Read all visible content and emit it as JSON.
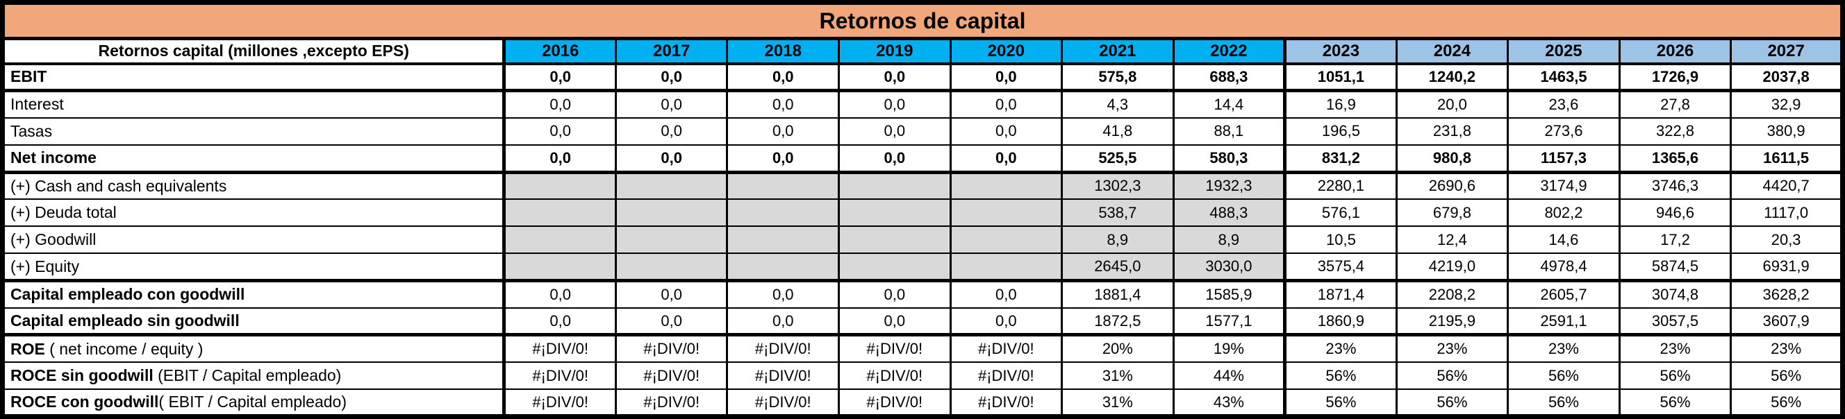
{
  "title": "Retornos de capital",
  "table": {
    "label_header": "Retornos capital (millones ,excepto EPS)",
    "years": [
      "2016",
      "2017",
      "2018",
      "2019",
      "2020",
      "2021",
      "2022",
      "2023",
      "2024",
      "2025",
      "2026",
      "2027"
    ],
    "forecast_start_index": 7,
    "rows": [
      {
        "label_bold": "EBIT",
        "label_rest": "",
        "values": [
          "0,0",
          "0,0",
          "0,0",
          "0,0",
          "0,0",
          "575,8",
          "688,3",
          "1051,1",
          "1240,2",
          "1463,5",
          "1726,9",
          "2037,8"
        ],
        "values_bold": true,
        "gray_cols": [],
        "thick_bottom": true
      },
      {
        "label_bold": "",
        "label_rest": "Interest",
        "values": [
          "0,0",
          "0,0",
          "0,0",
          "0,0",
          "0,0",
          "4,3",
          "14,4",
          "16,9",
          "20,0",
          "23,6",
          "27,8",
          "32,9"
        ],
        "values_bold": false,
        "gray_cols": [],
        "thick_bottom": false
      },
      {
        "label_bold": "",
        "label_rest": "Tasas",
        "values": [
          "0,0",
          "0,0",
          "0,0",
          "0,0",
          "0,0",
          "41,8",
          "88,1",
          "196,5",
          "231,8",
          "273,6",
          "322,8",
          "380,9"
        ],
        "values_bold": false,
        "gray_cols": [],
        "thick_bottom": false
      },
      {
        "label_bold": "Net income",
        "label_rest": "",
        "values": [
          "0,0",
          "0,0",
          "0,0",
          "0,0",
          "0,0",
          "525,5",
          "580,3",
          "831,2",
          "980,8",
          "1157,3",
          "1365,6",
          "1611,5"
        ],
        "values_bold": true,
        "gray_cols": [],
        "thick_bottom": true
      },
      {
        "label_bold": "",
        "label_rest": "(+) Cash and cash equivalents",
        "values": [
          "",
          "",
          "",
          "",
          "",
          "1302,3",
          "1932,3",
          "2280,1",
          "2690,6",
          "3174,9",
          "3746,3",
          "4420,7"
        ],
        "values_bold": false,
        "gray_cols": [
          0,
          1,
          2,
          3,
          4,
          5,
          6
        ],
        "thick_bottom": false
      },
      {
        "label_bold": "",
        "label_rest": "(+) Deuda total",
        "values": [
          "",
          "",
          "",
          "",
          "",
          "538,7",
          "488,3",
          "576,1",
          "679,8",
          "802,2",
          "946,6",
          "1117,0"
        ],
        "values_bold": false,
        "gray_cols": [
          0,
          1,
          2,
          3,
          4,
          5,
          6
        ],
        "thick_bottom": false
      },
      {
        "label_bold": "",
        "label_rest": "(+) Goodwill",
        "values": [
          "",
          "",
          "",
          "",
          "",
          "8,9",
          "8,9",
          "10,5",
          "12,4",
          "14,6",
          "17,2",
          "20,3"
        ],
        "values_bold": false,
        "gray_cols": [
          0,
          1,
          2,
          3,
          4,
          5,
          6
        ],
        "thick_bottom": false
      },
      {
        "label_bold": "",
        "label_rest": "(+) Equity",
        "values": [
          "",
          "",
          "",
          "",
          "",
          "2645,0",
          "3030,0",
          "3575,4",
          "4219,0",
          "4978,4",
          "5874,5",
          "6931,9"
        ],
        "values_bold": false,
        "gray_cols": [
          0,
          1,
          2,
          3,
          4,
          5,
          6
        ],
        "thick_bottom": true
      },
      {
        "label_bold": "Capital empleado con goodwill",
        "label_rest": "",
        "values": [
          "0,0",
          "0,0",
          "0,0",
          "0,0",
          "0,0",
          "1881,4",
          "1585,9",
          "1871,4",
          "2208,2",
          "2605,7",
          "3074,8",
          "3628,2"
        ],
        "values_bold": false,
        "gray_cols": [],
        "thick_bottom": false
      },
      {
        "label_bold": "Capital empleado sin goodwill",
        "label_rest": "",
        "values": [
          "0,0",
          "0,0",
          "0,0",
          "0,0",
          "0,0",
          "1872,5",
          "1577,1",
          "1860,9",
          "2195,9",
          "2591,1",
          "3057,5",
          "3607,9"
        ],
        "values_bold": false,
        "gray_cols": [],
        "thick_bottom": true
      },
      {
        "label_bold": "ROE",
        "label_rest": " ( net income / equity )",
        "values": [
          "#¡DIV/0!",
          "#¡DIV/0!",
          "#¡DIV/0!",
          "#¡DIV/0!",
          "#¡DIV/0!",
          "20%",
          "19%",
          "23%",
          "23%",
          "23%",
          "23%",
          "23%"
        ],
        "values_bold": false,
        "gray_cols": [],
        "thick_bottom": false
      },
      {
        "label_bold": "ROCE sin goodwill",
        "label_rest": " (EBIT / Capital empleado)",
        "values": [
          "#¡DIV/0!",
          "#¡DIV/0!",
          "#¡DIV/0!",
          "#¡DIV/0!",
          "#¡DIV/0!",
          "31%",
          "44%",
          "56%",
          "56%",
          "56%",
          "56%",
          "56%"
        ],
        "values_bold": false,
        "gray_cols": [],
        "thick_bottom": false
      },
      {
        "label_bold": "ROCE con goodwill",
        "label_rest": "( EBIT / Capital empleado)",
        "values": [
          "#¡DIV/0!",
          "#¡DIV/0!",
          "#¡DIV/0!",
          "#¡DIV/0!",
          "#¡DIV/0!",
          "31%",
          "43%",
          "56%",
          "56%",
          "56%",
          "56%",
          "56%"
        ],
        "values_bold": false,
        "gray_cols": [],
        "thick_bottom": true
      }
    ]
  },
  "colors": {
    "title_bg": "#F2A77A",
    "year_actual_bg": "#00B0F0",
    "year_forecast_bg": "#9DC3E6",
    "gray_cell_bg": "#D9D9D9",
    "cell_bg": "#FFFFFF",
    "border": "#000000"
  }
}
